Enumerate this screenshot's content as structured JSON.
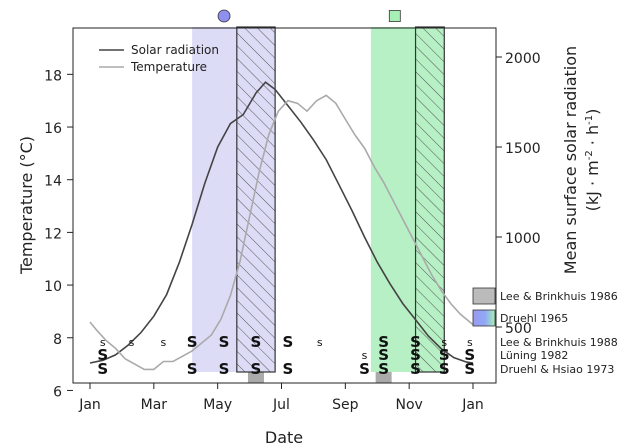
{
  "chart_data": {
    "type": "line",
    "xlabel": "Date",
    "ylabel_left": "Temperature (°C)",
    "ylabel_right_line1": "Mean surface solar radiation",
    "ylabel_right_unit_pre": "(kJ · m",
    "ylabel_right_unit_exp1": "-2",
    "ylabel_right_unit_mid": " · h",
    "ylabel_right_unit_exp2": "-1",
    "ylabel_right_unit_post": ")",
    "x_tick_labels": [
      "Jan",
      "Mar",
      "May",
      "Jul",
      "Sep",
      "Nov",
      "Jan"
    ],
    "x_tick_months": [
      0,
      2,
      4,
      6,
      8,
      10,
      12
    ],
    "xlim_months": [
      0,
      12
    ],
    "ylim_left": [
      6.7,
      19.0
    ],
    "yticks_left": [
      6,
      8,
      10,
      12,
      14,
      16,
      18
    ],
    "ylim_right": [
      250,
      2050
    ],
    "yticks_right": [
      500,
      1000,
      1500,
      2000
    ],
    "yticks_right_labels": [
      "500",
      "1000",
      "1500",
      "2000"
    ],
    "grid": false,
    "legend_position": "top-left",
    "series": [
      {
        "name": "Solar radiation",
        "axis": "right",
        "color": "#444444",
        "points": [
          [
            0.0,
            300
          ],
          [
            0.4,
            315
          ],
          [
            0.8,
            345
          ],
          [
            1.2,
            400
          ],
          [
            1.6,
            470
          ],
          [
            2.0,
            560
          ],
          [
            2.4,
            680
          ],
          [
            2.8,
            860
          ],
          [
            3.2,
            1070
          ],
          [
            3.6,
            1300
          ],
          [
            4.0,
            1500
          ],
          [
            4.4,
            1630
          ],
          [
            4.8,
            1680
          ],
          [
            5.2,
            1800
          ],
          [
            5.5,
            1860
          ],
          [
            5.8,
            1820
          ],
          [
            6.2,
            1730
          ],
          [
            6.6,
            1640
          ],
          [
            7.0,
            1540
          ],
          [
            7.4,
            1430
          ],
          [
            7.8,
            1290
          ],
          [
            8.2,
            1150
          ],
          [
            8.6,
            1000
          ],
          [
            9.0,
            860
          ],
          [
            9.4,
            740
          ],
          [
            9.8,
            630
          ],
          [
            10.2,
            540
          ],
          [
            10.6,
            450
          ],
          [
            11.0,
            380
          ],
          [
            11.4,
            330
          ],
          [
            11.8,
            305
          ],
          [
            12.0,
            300
          ]
        ]
      },
      {
        "name": "Temperature",
        "axis": "left",
        "color": "#aaaaaa",
        "points": [
          [
            0.0,
            8.6
          ],
          [
            0.2,
            8.3
          ],
          [
            0.5,
            7.9
          ],
          [
            0.8,
            7.6
          ],
          [
            1.1,
            7.2
          ],
          [
            1.4,
            7.0
          ],
          [
            1.7,
            6.8
          ],
          [
            2.0,
            6.8
          ],
          [
            2.3,
            7.1
          ],
          [
            2.6,
            7.1
          ],
          [
            2.9,
            7.3
          ],
          [
            3.2,
            7.5
          ],
          [
            3.5,
            7.8
          ],
          [
            3.8,
            8.1
          ],
          [
            4.1,
            8.7
          ],
          [
            4.4,
            9.6
          ],
          [
            4.7,
            10.9
          ],
          [
            5.0,
            12.6
          ],
          [
            5.3,
            14.3
          ],
          [
            5.6,
            15.7
          ],
          [
            5.9,
            16.6
          ],
          [
            6.2,
            17.0
          ],
          [
            6.5,
            16.9
          ],
          [
            6.8,
            16.6
          ],
          [
            7.1,
            17.0
          ],
          [
            7.4,
            17.2
          ],
          [
            7.7,
            16.9
          ],
          [
            8.0,
            16.3
          ],
          [
            8.3,
            15.7
          ],
          [
            8.6,
            15.2
          ],
          [
            8.9,
            14.5
          ],
          [
            9.2,
            13.9
          ],
          [
            9.5,
            13.2
          ],
          [
            9.8,
            12.5
          ],
          [
            10.1,
            11.8
          ],
          [
            10.4,
            11.1
          ],
          [
            10.7,
            10.4
          ],
          [
            11.0,
            9.8
          ],
          [
            11.3,
            9.3
          ],
          [
            11.6,
            8.9
          ],
          [
            11.9,
            8.6
          ],
          [
            12.0,
            8.5
          ]
        ]
      }
    ],
    "shaded_periods": [
      {
        "study": "Druehl 1965",
        "color": "#dcdcf7",
        "start_month": 3.2,
        "end_month": 5.8
      },
      {
        "study": "Druehl 1965",
        "color": "#b6f0c4",
        "start_month": 8.8,
        "end_month": 11.1
      }
    ],
    "hatched_periods": [
      {
        "study": "Lee & Brinkhuis 1986",
        "start_month": 4.6,
        "end_month": 5.8
      },
      {
        "study": "Lee & Brinkhuis 1986",
        "start_month": 10.2,
        "end_month": 11.1
      }
    ],
    "period_markers": [
      {
        "shape": "circle",
        "month": 4.2,
        "color": "#8f8ff0"
      },
      {
        "shape": "square",
        "month": 9.55,
        "color": "#a6f0b5"
      }
    ],
    "legend_boxes": [
      {
        "label": "Lee & Brinkhuis 1986",
        "fill": "#bbbbbb"
      },
      {
        "label": "Druehl 1965",
        "fill": "gradient"
      }
    ],
    "sporophyte_studies": [
      {
        "label": "Lee & Brinkhuis 1988",
        "marks": [
          {
            "month": 0.4,
            "size": "small",
            "text": "s"
          },
          {
            "month": 1.3,
            "size": "small",
            "text": "s"
          },
          {
            "month": 2.3,
            "size": "small",
            "text": "s"
          },
          {
            "month": 3.2,
            "size": "large",
            "text": "S"
          },
          {
            "month": 4.2,
            "size": "large",
            "text": "S"
          },
          {
            "month": 5.2,
            "size": "large",
            "text": "S"
          },
          {
            "month": 6.2,
            "size": "large",
            "text": "S"
          },
          {
            "month": 7.2,
            "size": "small",
            "text": "s"
          },
          {
            "month": 9.2,
            "size": "large",
            "text": "S"
          },
          {
            "month": 10.2,
            "size": "large",
            "text": "S"
          },
          {
            "month": 11.1,
            "size": "small",
            "text": "s"
          },
          {
            "month": 11.9,
            "size": "small",
            "text": "s"
          }
        ]
      },
      {
        "label": "Lüning 1982",
        "marks": [
          {
            "month": 0.4,
            "size": "large",
            "text": "S"
          },
          {
            "month": 8.6,
            "size": "small",
            "text": "s"
          },
          {
            "month": 9.2,
            "size": "large",
            "text": "S"
          },
          {
            "month": 10.2,
            "size": "large",
            "text": "S"
          },
          {
            "month": 11.1,
            "size": "large",
            "text": "S"
          },
          {
            "month": 11.9,
            "size": "large",
            "text": "S"
          }
        ]
      },
      {
        "label": "Druehl & Hsiao 1973",
        "marks": [
          {
            "month": 0.4,
            "size": "large",
            "text": "S"
          },
          {
            "month": 3.2,
            "size": "large",
            "text": "S"
          },
          {
            "month": 4.2,
            "size": "large",
            "text": "S"
          },
          {
            "month": 5.2,
            "size": "large",
            "text": "S"
          },
          {
            "month": 6.2,
            "size": "large",
            "text": "S"
          },
          {
            "month": 8.6,
            "size": "large",
            "text": "S"
          },
          {
            "month": 9.2,
            "size": "large",
            "text": "S"
          },
          {
            "month": 10.2,
            "size": "large",
            "text": "S"
          },
          {
            "month": 11.1,
            "size": "large",
            "text": "S"
          },
          {
            "month": 11.9,
            "size": "large",
            "text": "S"
          }
        ]
      }
    ],
    "sporophyte_highlight_months": [
      5.2,
      9.2
    ]
  }
}
